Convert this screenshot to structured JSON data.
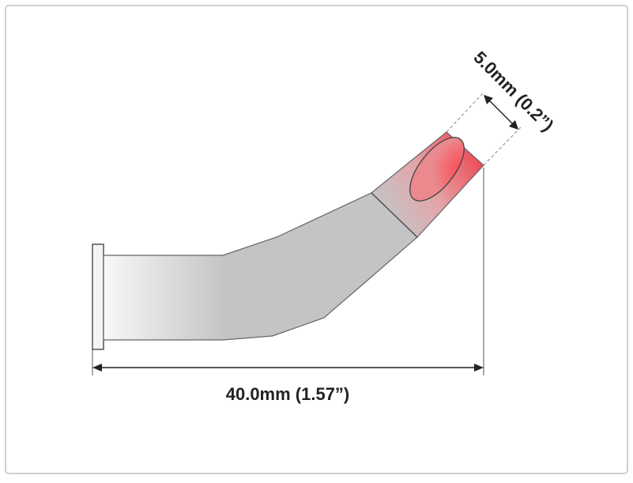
{
  "diagram": {
    "length_label": "40.0mm (1.57”)",
    "width_label": "5.0mm (0.2”)"
  },
  "colors": {
    "frame": "#cfcfcf",
    "body_gray": "#c2c2c4",
    "body_light": "#f7f7f7",
    "tip_red": "#ef3f4a",
    "dimension_line": "#333333"
  }
}
